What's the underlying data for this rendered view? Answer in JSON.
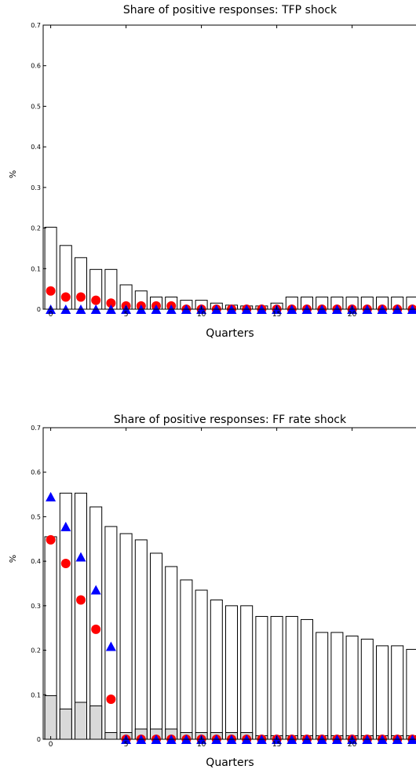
{
  "chart_data": [
    {
      "type": "bar",
      "title": "Share of positive responses: TFP shock",
      "xlabel": "Quarters",
      "ylabel": "%",
      "ylim": [
        0,
        0.7
      ],
      "xlim": [
        -0.5,
        24.5
      ],
      "x_ticks": [
        0,
        5,
        10,
        15,
        20
      ],
      "x_tick_labels": [
        "0",
        "5",
        "10",
        "15",
        "20"
      ],
      "y_ticks": [
        0,
        0.1,
        0.2,
        0.3,
        0.4,
        0.5,
        0.6,
        0.7
      ],
      "y_tick_labels": [
        "0",
        "0.1",
        "0.2",
        "0.3",
        "0.4",
        "0.5",
        "0.6",
        "0.7"
      ],
      "grid": false,
      "legend": "none",
      "x": [
        0,
        1,
        2,
        3,
        4,
        5,
        6,
        7,
        8,
        9,
        10,
        11,
        12,
        13,
        14,
        15,
        16,
        17,
        18,
        19,
        20,
        21,
        22,
        23,
        24
      ],
      "series": [
        {
          "type": "bar",
          "color": "#ffffff",
          "edge_color": "#000000",
          "values": [
            0.202,
            0.157,
            0.127,
            0.098,
            0.098,
            0.06,
            0.045,
            0.03,
            0.03,
            0.022,
            0.022,
            0.015,
            0.01,
            0.008,
            0.008,
            0.015,
            0.03,
            0.03,
            0.03,
            0.03,
            0.03,
            0.03,
            0.03,
            0.03,
            0.03
          ]
        },
        {
          "type": "scatter",
          "marker": "circle",
          "color": "#ff0000",
          "values": [
            0.045,
            0.03,
            0.03,
            0.022,
            0.015,
            0.008,
            0.008,
            0.008,
            0.008,
            0.0,
            0.0,
            0.0,
            0.0,
            0.0,
            0.0,
            0.0,
            0.0,
            0.0,
            0.0,
            0.0,
            0.0,
            0.0,
            0.0,
            0.0,
            0.0
          ]
        },
        {
          "type": "scatter",
          "marker": "triangle",
          "color": "#0000ff",
          "values": [
            0.0,
            0.0,
            0.0,
            0.0,
            0.0,
            0.0,
            0.0,
            0.0,
            0.0,
            0.0,
            0.0,
            0.0,
            0.0,
            0.0,
            0.0,
            0.0,
            0.0,
            0.0,
            0.0,
            0.0,
            0.0,
            0.0,
            0.0,
            0.0,
            0.0
          ]
        }
      ]
    },
    {
      "type": "bar",
      "title": "Share of positive responses: FF rate shock",
      "xlabel": "Quarters",
      "ylabel": "%",
      "ylim": [
        0,
        0.7
      ],
      "xlim": [
        -0.5,
        24.5
      ],
      "x_ticks": [
        0,
        5,
        10,
        15,
        20
      ],
      "x_tick_labels": [
        "0",
        "5",
        "10",
        "15",
        "20"
      ],
      "y_ticks": [
        0,
        0.1,
        0.2,
        0.3,
        0.4,
        0.5,
        0.6,
        0.7
      ],
      "y_tick_labels": [
        "0",
        "0.1",
        "0.2",
        "0.3",
        "0.4",
        "0.5",
        "0.6",
        "0.7"
      ],
      "grid": false,
      "legend": "none",
      "x": [
        0,
        1,
        2,
        3,
        4,
        5,
        6,
        7,
        8,
        9,
        10,
        11,
        12,
        13,
        14,
        15,
        16,
        17,
        18,
        19,
        20,
        21,
        22,
        23,
        24
      ],
      "series": [
        {
          "type": "bar",
          "color": "#ffffff",
          "edge_color": "#000000",
          "values": [
            0.455,
            0.553,
            0.553,
            0.522,
            0.478,
            0.462,
            0.448,
            0.418,
            0.388,
            0.358,
            0.335,
            0.313,
            0.3,
            0.3,
            0.276,
            0.276,
            0.276,
            0.269,
            0.24,
            0.24,
            0.232,
            0.225,
            0.21,
            0.21,
            0.202
          ]
        },
        {
          "type": "bar",
          "color": "#d9d9d9",
          "edge_color": "#000000",
          "values": [
            0.098,
            0.068,
            0.083,
            0.075,
            0.015,
            0.015,
            0.023,
            0.023,
            0.023,
            0.015,
            0.015,
            0.015,
            0.015,
            0.015,
            0.008,
            0.008,
            0.008,
            0.008,
            0.008,
            0.008,
            0.008,
            0.008,
            0.008,
            0.008,
            0.008
          ]
        },
        {
          "type": "scatter",
          "marker": "circle",
          "color": "#ff0000",
          "values": [
            0.448,
            0.395,
            0.313,
            0.247,
            0.09,
            0.0,
            0.0,
            0.0,
            0.0,
            0.0,
            0.0,
            0.0,
            0.0,
            0.0,
            0.0,
            0.0,
            0.0,
            0.0,
            0.0,
            0.0,
            0.0,
            0.0,
            0.0,
            0.0,
            0.0
          ]
        },
        {
          "type": "scatter",
          "marker": "triangle",
          "color": "#0000ff",
          "values": [
            0.545,
            0.478,
            0.41,
            0.336,
            0.209,
            0.0,
            0.0,
            0.0,
            0.0,
            0.0,
            0.0,
            0.0,
            0.0,
            0.0,
            0.0,
            0.0,
            0.0,
            0.0,
            0.0,
            0.0,
            0.0,
            0.0,
            0.0,
            0.0,
            0.0
          ]
        }
      ]
    }
  ]
}
